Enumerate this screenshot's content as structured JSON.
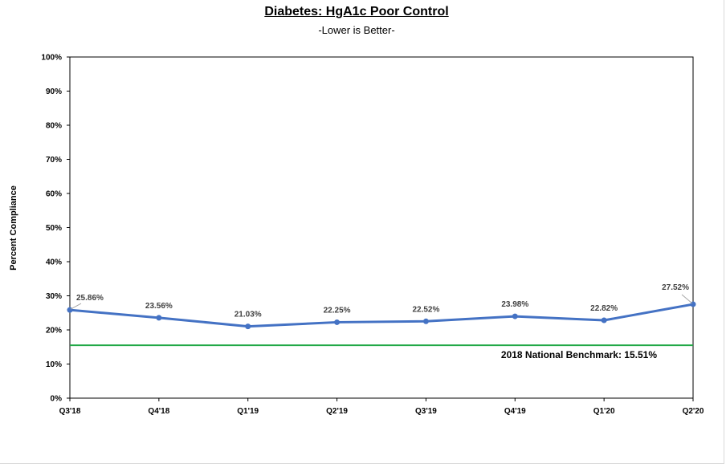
{
  "chart_data": {
    "type": "line",
    "title": "Diabetes: HgA1c Poor Control",
    "subtitle": "-Lower is Better-",
    "ylabel": "Percent Compliance",
    "xlabel": "",
    "categories": [
      "Q3'18",
      "Q4'18",
      "Q1'19",
      "Q2'19",
      "Q3'19",
      "Q4'19",
      "Q1'20",
      "Q2'20"
    ],
    "series": [
      {
        "values": [
          25.86,
          23.56,
          21.03,
          22.25,
          22.52,
          23.98,
          22.82,
          27.52
        ],
        "data_labels": [
          "25.86%",
          "23.56%",
          "21.03%",
          "22.25%",
          "22.52%",
          "23.98%",
          "22.82%",
          "27.52%"
        ],
        "color": "#4472c4"
      }
    ],
    "ylim": [
      0,
      100
    ],
    "y_ticks": [
      0,
      10,
      20,
      30,
      40,
      50,
      60,
      70,
      80,
      90,
      100
    ],
    "y_tick_labels": [
      "0%",
      "10%",
      "20%",
      "30%",
      "40%",
      "50%",
      "60%",
      "70%",
      "80%",
      "90%",
      "100%"
    ],
    "grid": false,
    "legend": "none",
    "benchmark": {
      "value": 15.51,
      "label": "2018  National Benchmark: 15.51%",
      "color": "#21a846"
    }
  }
}
